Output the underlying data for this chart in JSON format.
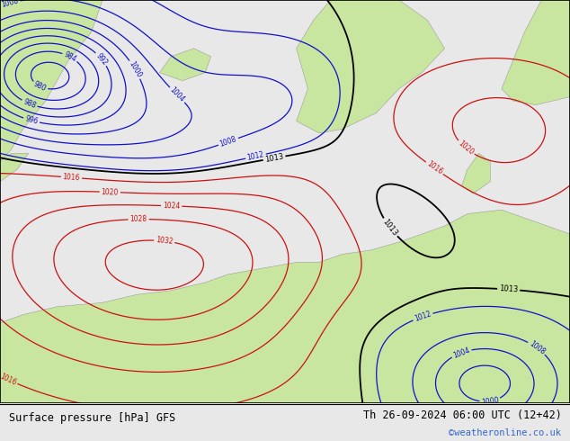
{
  "title_left": "Surface pressure [hPa] GFS",
  "title_right": "Th 26-09-2024 06:00 UTC (12+42)",
  "credit": "©weatheronline.co.uk",
  "land_color": "#c8e6a0",
  "sea_color": "#c8c8c8",
  "bottom_bg": "#e8e8e8",
  "figsize": [
    6.34,
    4.9
  ],
  "dpi": 100
}
